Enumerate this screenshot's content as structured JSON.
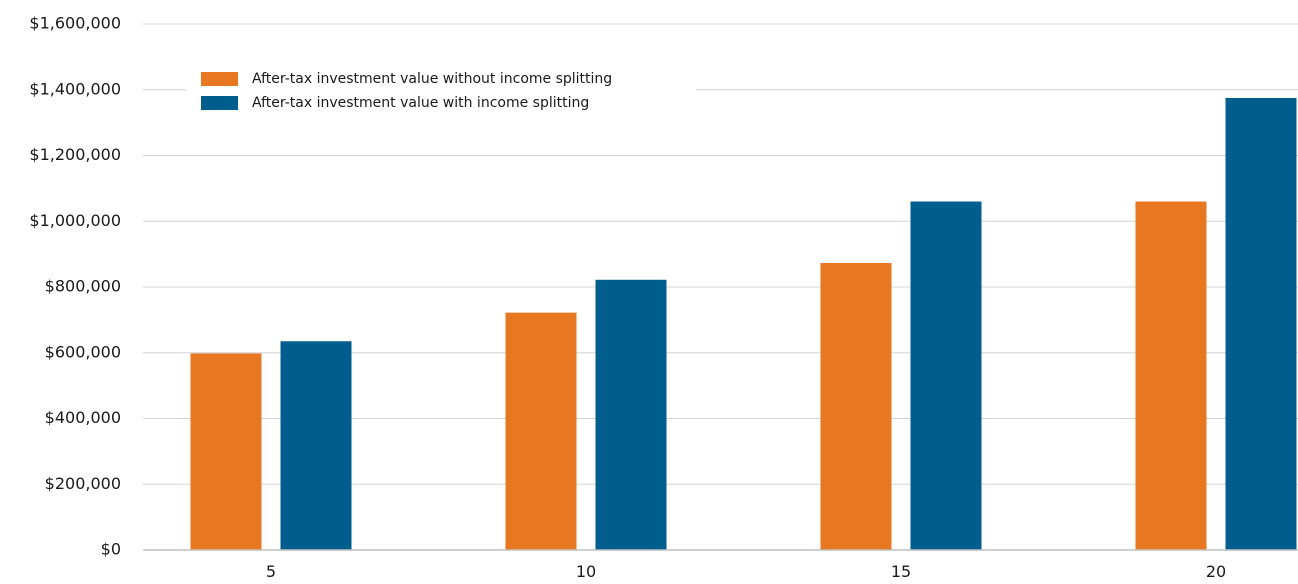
{
  "chart_data": {
    "type": "bar",
    "title": "",
    "xlabel": "",
    "ylabel": "",
    "categories": [
      "5",
      "10",
      "15",
      "20"
    ],
    "series": [
      {
        "name": "After-tax investment value without income splitting",
        "color": "#E87722",
        "values": [
          598000,
          722000,
          873000,
          1060000
        ]
      },
      {
        "name": "After-tax investment value with income splitting",
        "color": "#005E8E",
        "values": [
          635000,
          822000,
          1060000,
          1375000
        ]
      }
    ],
    "ylim": [
      0,
      1600000
    ],
    "yticks": [
      {
        "value": 0,
        "label": "$0"
      },
      {
        "value": 200000,
        "label": "$200,000"
      },
      {
        "value": 400000,
        "label": "$400,000"
      },
      {
        "value": 600000,
        "label": "$600,000"
      },
      {
        "value": 800000,
        "label": "$800,000"
      },
      {
        "value": 1000000,
        "label": "$1,000,000"
      },
      {
        "value": 1200000,
        "label": "$1,200,000"
      },
      {
        "value": 1400000,
        "label": "$1,400,000"
      },
      {
        "value": 1600000,
        "label": "$1,600,000"
      }
    ],
    "grid": true,
    "legend_position": "top-left"
  }
}
